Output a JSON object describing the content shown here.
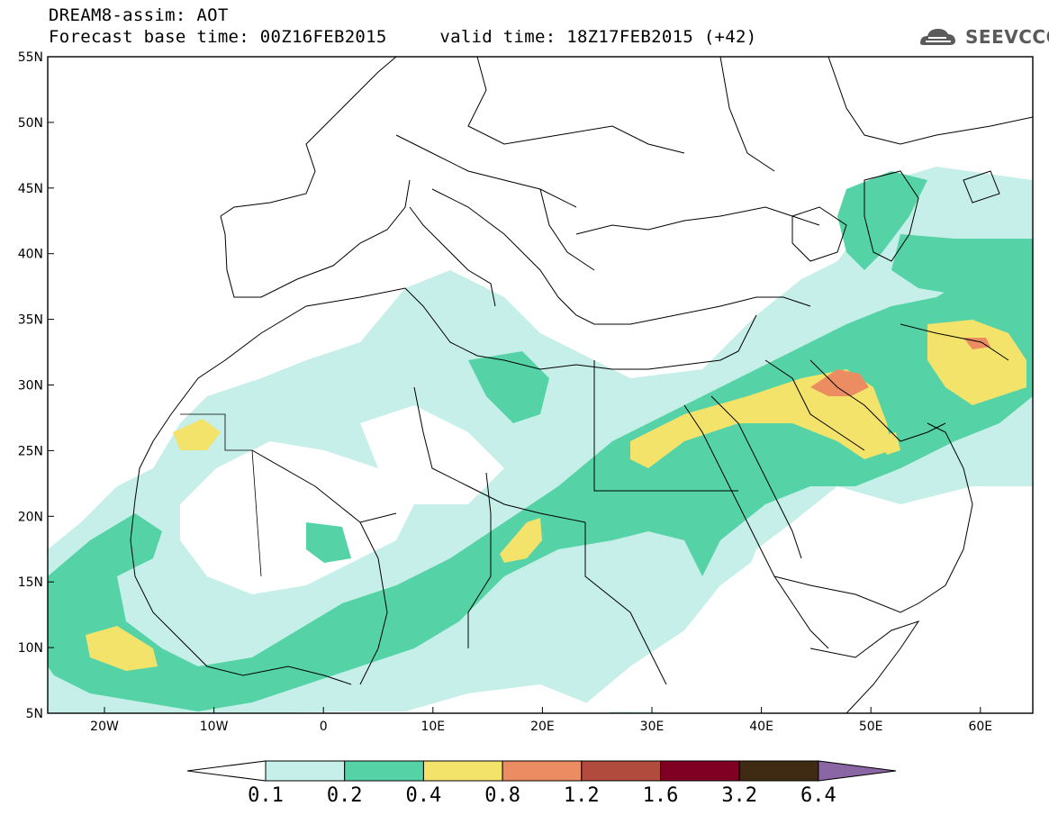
{
  "header": {
    "line1": "DREAM8-assim: AOT",
    "line2": "Forecast base time: 00Z16FEB2015     valid time: 18Z17FEB2015 (+42)"
  },
  "logo": {
    "text": "SEEVCCC",
    "icon": "cloud-icon"
  },
  "map": {
    "lat_labels": [
      "55N",
      "50N",
      "45N",
      "40N",
      "35N",
      "30N",
      "25N",
      "20N",
      "15N",
      "10N",
      "5N"
    ],
    "lon_labels": [
      "20W",
      "10W",
      "0",
      "10E",
      "20E",
      "30E",
      "40E",
      "50E",
      "60E"
    ]
  },
  "colorbar": {
    "labels": [
      "0.1",
      "0.2",
      "0.4",
      "0.8",
      "1.2",
      "1.6",
      "3.2",
      "6.4"
    ],
    "colors": [
      "#c5efe8",
      "#55d3a6",
      "#f4e36b",
      "#eb8c62",
      "#b04b3e",
      "#7f0023",
      "#3f2a14",
      "#8a66a5"
    ],
    "under_color": "#ffffff",
    "over_color": "#8a66a5"
  }
}
